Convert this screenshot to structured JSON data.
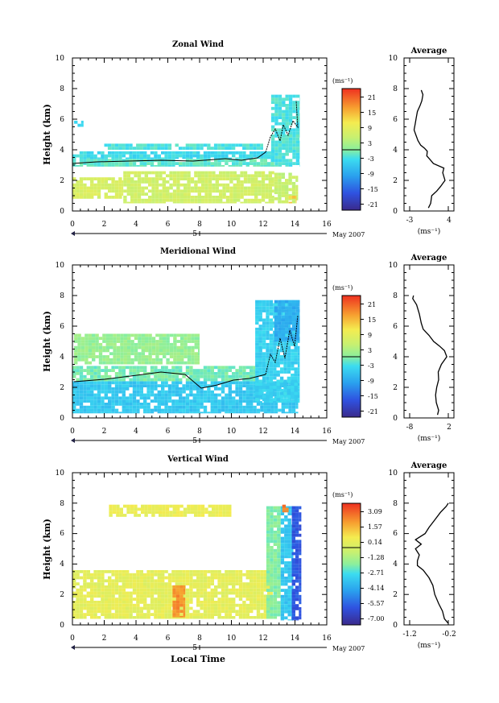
{
  "chart_data": [
    {
      "type": "heatmap",
      "title": "Zonal Wind",
      "xlabel": "",
      "ylabel": "Height (km)",
      "xlim": [
        0,
        16
      ],
      "ylim": [
        0,
        10
      ],
      "xticks": [
        "0",
        "2",
        "4",
        "6",
        "8",
        "10",
        "12",
        "14",
        "16"
      ],
      "yticks": [
        "0",
        "2",
        "4",
        "6",
        "8",
        "10"
      ],
      "date_label": "May 2007",
      "date_tick": "5",
      "colorbar": {
        "unit": "(ms⁻¹)",
        "ticks": [
          "21",
          "15",
          "9",
          "3",
          "-3",
          "-9",
          "-15",
          "-21"
        ],
        "min": -24,
        "max": 24,
        "zero_line": 0
      },
      "average": {
        "title": "Average",
        "unit": "(ms⁻¹)",
        "xticks": [
          "-3",
          "4"
        ],
        "xlim": [
          -3,
          4
        ],
        "ylim": [
          0,
          10
        ],
        "profile": [
          [
            0.4,
            0.2
          ],
          [
            0.8,
            0.5
          ],
          [
            1.0,
            1.0
          ],
          [
            1.9,
            1.3
          ],
          [
            2.6,
            1.6
          ],
          [
            3.4,
            2.0
          ],
          [
            3.0,
            2.5
          ],
          [
            3.2,
            2.8
          ],
          [
            1.3,
            3.1
          ],
          [
            0.6,
            3.4
          ],
          [
            0.1,
            3.6
          ],
          [
            0.2,
            3.9
          ],
          [
            -0.3,
            4.1
          ],
          [
            -1.0,
            4.3
          ],
          [
            -1.5,
            4.6
          ],
          [
            -1.9,
            5.0
          ],
          [
            -2.2,
            5.3
          ],
          [
            -2.0,
            5.7
          ],
          [
            -1.8,
            6.1
          ],
          [
            -1.6,
            6.5
          ],
          [
            -1.1,
            6.9
          ],
          [
            -0.8,
            7.2
          ],
          [
            -0.6,
            7.6
          ],
          [
            -0.9,
            7.9
          ]
        ]
      },
      "fields": [
        {
          "x": [
            0,
            3.2
          ],
          "y": [
            0.8,
            2.2
          ],
          "value": 7
        },
        {
          "x": [
            3.2,
            12.7
          ],
          "y": [
            0.5,
            2.6
          ],
          "value": 6
        },
        {
          "x": [
            12.7,
            14.2
          ],
          "y": [
            0.5,
            2.5
          ],
          "value": 5
        },
        {
          "x": [
            13.6,
            14.1
          ],
          "y": [
            0.5,
            1.0
          ],
          "value": 13
        },
        {
          "x": [
            0,
            12.7
          ],
          "y": [
            2.9,
            3.4
          ],
          "value": -2
        },
        {
          "x": [
            0,
            12.7
          ],
          "y": [
            3.4,
            3.9
          ],
          "value": -4
        },
        {
          "x": [
            12.5,
            14.3
          ],
          "y": [
            2.9,
            7.6
          ],
          "value": -3
        },
        {
          "x": [
            0.1,
            0.7
          ],
          "y": [
            5.5,
            5.9
          ],
          "value": -5
        },
        {
          "x": [
            2.0,
            12.0
          ],
          "y": [
            4.0,
            4.4
          ],
          "value": -3
        }
      ]
    },
    {
      "type": "heatmap",
      "title": "Meridional Wind",
      "xlabel": "",
      "ylabel": "Height (km)",
      "xlim": [
        0,
        16
      ],
      "ylim": [
        0,
        10
      ],
      "xticks": [
        "0",
        "2",
        "4",
        "6",
        "8",
        "10",
        "12",
        "14",
        "16"
      ],
      "yticks": [
        "0",
        "2",
        "4",
        "6",
        "8",
        "10"
      ],
      "date_label": "May 2007",
      "date_tick": "5",
      "colorbar": {
        "unit": "(ms⁻¹)",
        "ticks": [
          "21",
          "15",
          "9",
          "3",
          "-3",
          "-9",
          "-15",
          "-21"
        ],
        "min": -24,
        "max": 24,
        "zero_line": 0
      },
      "average": {
        "title": "Average",
        "unit": "(ms⁻¹)",
        "xticks": [
          "-8",
          "2"
        ],
        "xlim": [
          -8,
          2
        ],
        "ylim": [
          0,
          10
        ],
        "profile": [
          [
            -0.8,
            0.2
          ],
          [
            -0.5,
            0.5
          ],
          [
            -1.1,
            1.0
          ],
          [
            -1.3,
            1.5
          ],
          [
            -1.0,
            2.0
          ],
          [
            -0.5,
            2.5
          ],
          [
            -0.6,
            3.0
          ],
          [
            0.2,
            3.5
          ],
          [
            1.6,
            4.0
          ],
          [
            1.0,
            4.4
          ],
          [
            -0.3,
            4.7
          ],
          [
            -1.8,
            5.0
          ],
          [
            -3.0,
            5.4
          ],
          [
            -4.5,
            5.8
          ],
          [
            -5.0,
            6.2
          ],
          [
            -5.5,
            6.8
          ],
          [
            -6.2,
            7.4
          ],
          [
            -7.2,
            7.8
          ],
          [
            -7.0,
            8.0
          ]
        ]
      },
      "fields": [
        {
          "x": [
            0,
            14.2
          ],
          "y": [
            0.3,
            2.4
          ],
          "value": -6
        },
        {
          "x": [
            0,
            11.5
          ],
          "y": [
            2.4,
            3.4
          ],
          "value": -1
        },
        {
          "x": [
            11.5,
            14.3
          ],
          "y": [
            1.0,
            7.7
          ],
          "value": -5
        },
        {
          "x": [
            12.7,
            14.3
          ],
          "y": [
            5.0,
            7.7
          ],
          "value": -9
        },
        {
          "x": [
            0.1,
            8.0
          ],
          "y": [
            3.5,
            5.5
          ],
          "value": 1
        }
      ]
    },
    {
      "type": "heatmap",
      "title": "Vertical Wind",
      "xlabel": "Local Time",
      "ylabel": "Height (km)",
      "xlim": [
        0,
        16
      ],
      "ylim": [
        0,
        10
      ],
      "xticks": [
        "0",
        "2",
        "4",
        "6",
        "8",
        "10",
        "12",
        "14",
        "16"
      ],
      "yticks": [
        "0",
        "2",
        "4",
        "6",
        "8",
        "10"
      ],
      "date_label": "May 2007",
      "date_tick": "5",
      "colorbar": {
        "unit": "(ms⁻¹)",
        "ticks": [
          "3.09",
          "1.57",
          "0.14",
          "-1.28",
          "-2.71",
          "-4.14",
          "-5.57",
          "-7.00"
        ],
        "min": -7.7,
        "max": 3.8,
        "zero_line": -0.57
      },
      "average": {
        "title": "Average",
        "unit": "(ms⁻¹)",
        "xticks": [
          "-1.2",
          "-0.2"
        ],
        "xlim": [
          -1.2,
          -0.2
        ],
        "ylim": [
          0,
          10
        ],
        "profile": [
          [
            -0.2,
            0.1
          ],
          [
            -0.3,
            0.4
          ],
          [
            -0.35,
            0.9
          ],
          [
            -0.45,
            1.4
          ],
          [
            -0.55,
            2.0
          ],
          [
            -0.6,
            2.6
          ],
          [
            -0.7,
            3.1
          ],
          [
            -0.85,
            3.6
          ],
          [
            -1.0,
            3.9
          ],
          [
            -1.0,
            4.2
          ],
          [
            -0.95,
            4.6
          ],
          [
            -1.05,
            5.0
          ],
          [
            -0.9,
            5.3
          ],
          [
            -1.05,
            5.6
          ],
          [
            -0.8,
            6.0
          ],
          [
            -0.7,
            6.4
          ],
          [
            -0.55,
            6.9
          ],
          [
            -0.4,
            7.4
          ],
          [
            -0.25,
            7.8
          ],
          [
            -0.2,
            8.0
          ]
        ]
      },
      "fields": [
        {
          "x": [
            0,
            12.6
          ],
          "y": [
            0.4,
            3.6
          ],
          "value": 0.1
        },
        {
          "x": [
            6.3,
            7.1
          ],
          "y": [
            0.5,
            2.6
          ],
          "value": 2.2
        },
        {
          "x": [
            12.2,
            13.1
          ],
          "y": [
            0.4,
            7.8
          ],
          "value": -2.0
        },
        {
          "x": [
            13.1,
            13.9
          ],
          "y": [
            0.3,
            7.8
          ],
          "value": -3.5
        },
        {
          "x": [
            13.8,
            14.4
          ],
          "y": [
            0.3,
            7.8
          ],
          "value": -6.0
        },
        {
          "x": [
            13.2,
            13.6
          ],
          "y": [
            7.4,
            7.9
          ],
          "value": 2.5
        },
        {
          "x": [
            2.3,
            10.0
          ],
          "y": [
            7.1,
            7.9
          ],
          "value": 0.3
        }
      ]
    }
  ]
}
